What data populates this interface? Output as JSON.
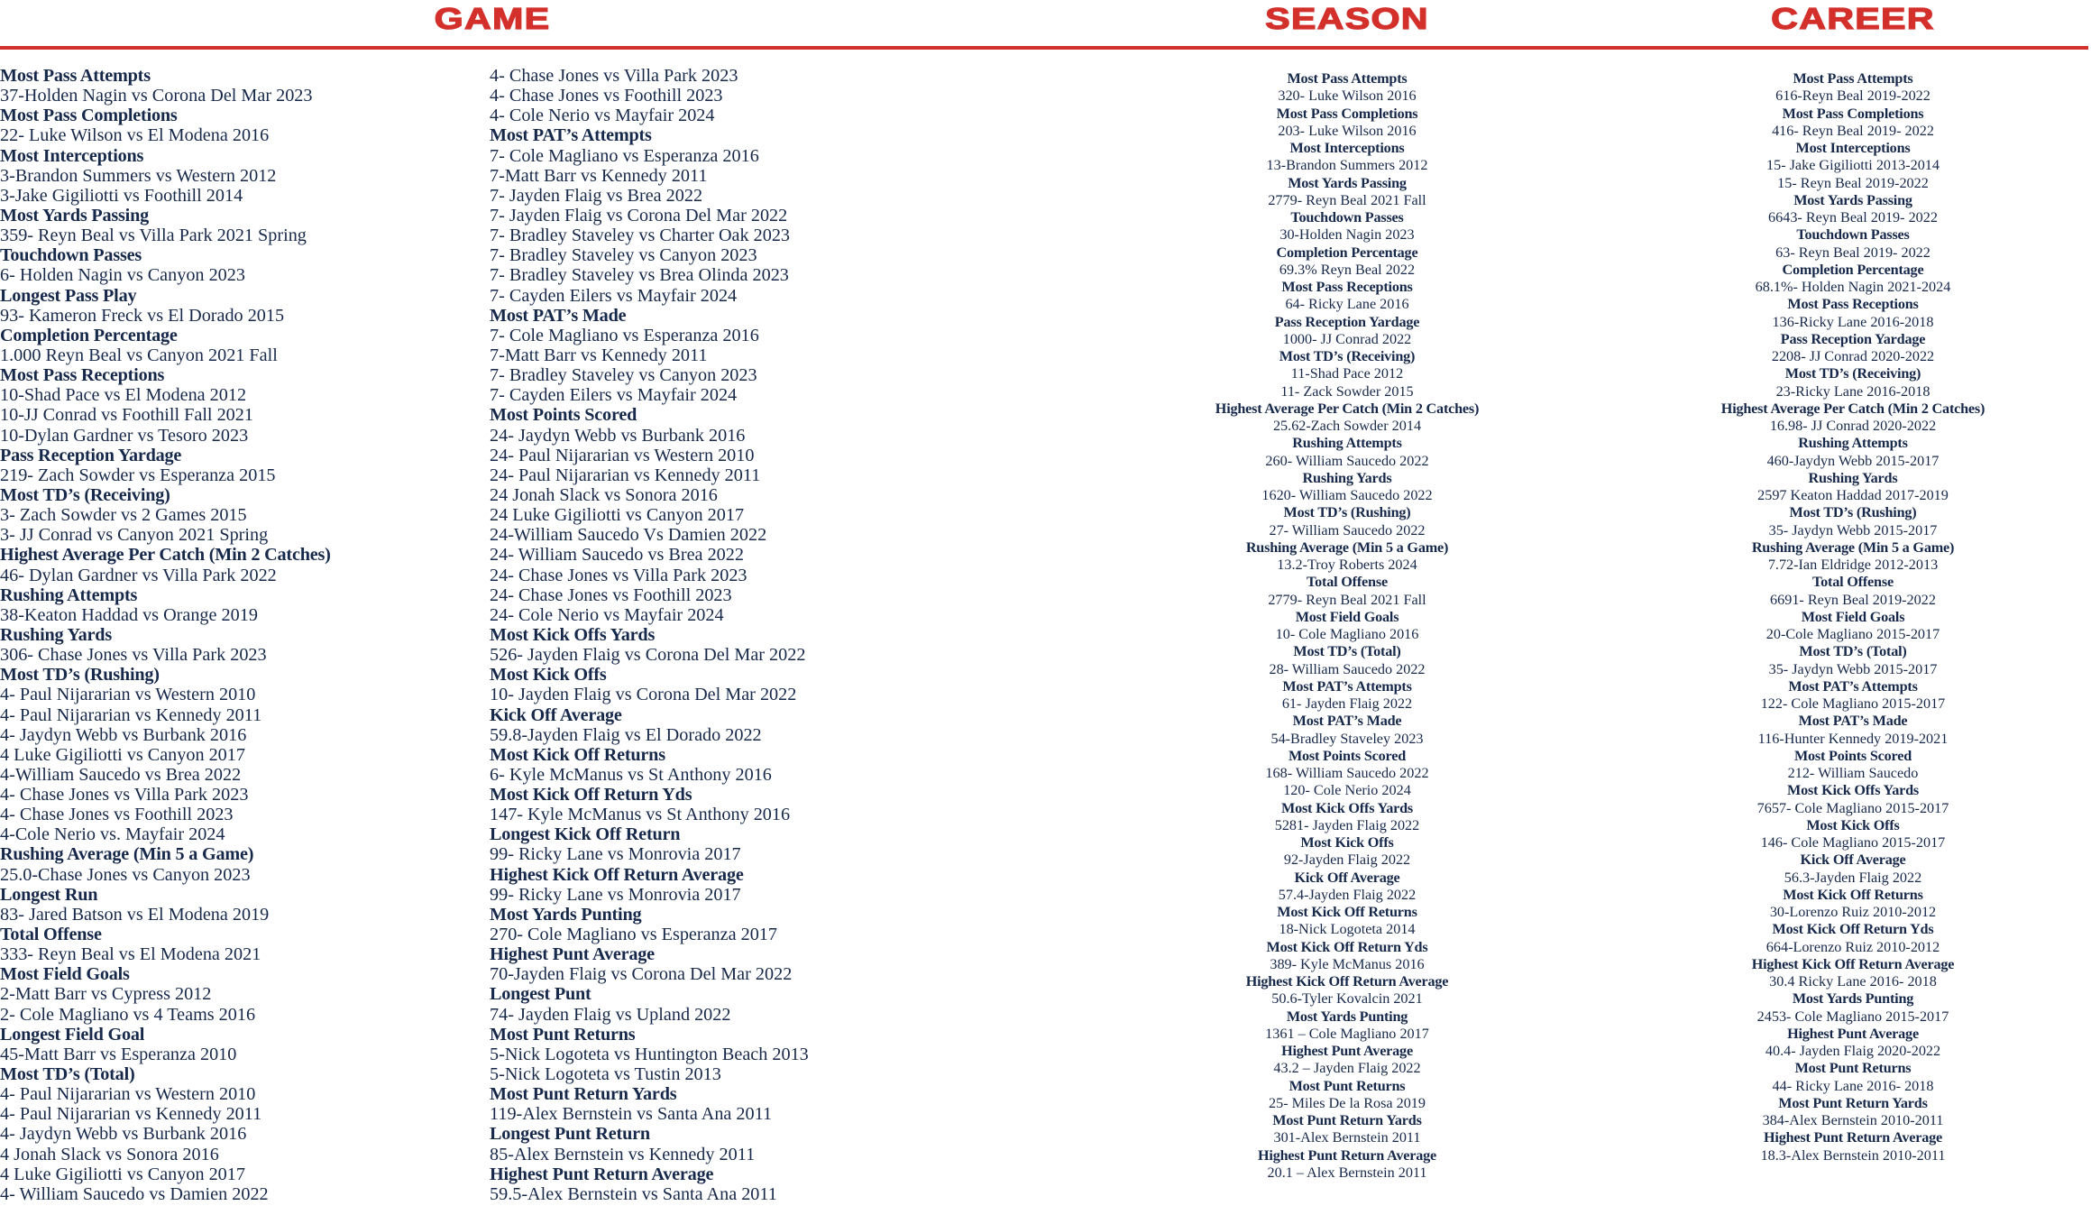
{
  "colors": {
    "accent": "#d3302c",
    "text": "#17294b"
  },
  "headers": {
    "game": "GAME",
    "season": "SEASON",
    "career": "CAREER"
  },
  "game": {
    "columns": [
      [
        {
          "title": "Most Pass Attempts",
          "entries": [
            "37-Holden Nagin vs Corona Del Mar 2023"
          ]
        },
        {
          "title": "Most Pass Completions",
          "entries": [
            "22- Luke Wilson vs El Modena 2016"
          ]
        },
        {
          "title": "Most Interceptions",
          "entries": [
            "3-Brandon Summers vs Western 2012",
            "3-Jake Gigiliotti vs Foothill 2014"
          ]
        },
        {
          "title": "Most Yards Passing",
          "entries": [
            "359- Reyn Beal vs  Villa Park 2021 Spring"
          ]
        },
        {
          "title": "Touchdown Passes",
          "entries": [
            "6- Holden Nagin vs Canyon 2023"
          ]
        },
        {
          "title": "Longest Pass Play",
          "entries": [
            "93- Kameron Freck vs El Dorado 2015"
          ]
        },
        {
          "title": "Completion Percentage",
          "entries": [
            "1.000 Reyn Beal vs Canyon 2021 Fall"
          ]
        },
        {
          "title": "Most Pass Receptions",
          "entries": [
            "10-Shad Pace vs El Modena 2012",
            "10-JJ Conrad vs Foothill Fall 2021",
            "10-Dylan Gardner vs Tesoro 2023"
          ]
        },
        {
          "title": "Pass Reception Yardage",
          "entries": [
            "219- Zach Sowder vs Esperanza 2015"
          ]
        },
        {
          "title": "Most TD’s (Receiving)",
          "entries": [
            "3- Zach Sowder vs 2 Games 2015",
            "3- JJ Conrad vs Canyon 2021 Spring"
          ]
        },
        {
          "title": "Highest Average Per Catch (Min 2 Catches)",
          "entries": [
            "46- Dylan Gardner vs Villa Park 2022"
          ]
        },
        {
          "title": "Rushing Attempts",
          "entries": [
            "38-Keaton Haddad vs Orange 2019"
          ]
        },
        {
          "title": "Rushing Yards",
          "entries": [
            "306- Chase Jones vs Villa Park 2023"
          ]
        },
        {
          "title": "Most TD’s (Rushing)",
          "entries": [
            "4- Paul Nijararian vs Western 2010",
            "4- Paul Nijararian vs Kennedy 2011",
            "4- Jaydyn Webb vs Burbank 2016",
            "4 Luke Gigiliotti vs Canyon 2017",
            "4-William Saucedo vs Brea 2022",
            "4- Chase Jones vs Villa Park 2023",
            "4- Chase Jones vs Foothill 2023",
            "4-Cole Nerio vs. Mayfair 2024"
          ]
        },
        {
          "title": "Rushing Average (Min 5 a Game)",
          "entries": [
            "25.0-Chase Jones vs Canyon 2023"
          ]
        },
        {
          "title": "Longest Run",
          "entries": [
            "83- Jared Batson vs El Modena 2019"
          ]
        },
        {
          "title": "Total Offense",
          "entries": [
            "333- Reyn Beal vs El Modena 2021"
          ]
        },
        {
          "title": "Most Field Goals",
          "entries": [
            "2-Matt Barr vs Cypress 2012",
            "2- Cole Magliano vs 4 Teams 2016"
          ]
        },
        {
          "title": "Longest Field Goal",
          "entries": [
            "45-Matt Barr vs Esperanza 2010"
          ]
        },
        {
          "title": "Most TD’s (Total)",
          "entries": [
            "4- Paul Nijararian vs Western 2010",
            "4- Paul Nijararian vs Kennedy 2011",
            "4- Jaydyn Webb vs Burbank 2016",
            "4 Jonah Slack vs Sonora 2016",
            "4 Luke Gigiliotti vs Canyon 2017",
            "4- William Saucedo vs Damien 2022"
          ]
        }
      ],
      [
        {
          "title": "",
          "entries": [
            "4- Chase Jones vs Villa Park 2023",
            "4- Chase Jones vs Foothill 2023",
            "4- Cole Nerio vs Mayfair 2024"
          ]
        },
        {
          "title": "Most PAT’s Attempts",
          "entries": [
            "7- Cole Magliano vs Esperanza 2016",
            "7-Matt Barr vs Kennedy 2011",
            "7- Jayden Flaig vs Brea 2022",
            "7- Jayden Flaig vs Corona Del Mar 2022",
            "7- Bradley Staveley vs Charter Oak 2023",
            "7- Bradley Staveley vs Canyon 2023",
            "7- Bradley Staveley vs Brea Olinda 2023",
            "7- Cayden Eilers vs Mayfair 2024"
          ]
        },
        {
          "title": "Most PAT’s Made",
          "entries": [
            "7- Cole Magliano vs Esperanza 2016",
            "7-Matt Barr vs Kennedy 2011",
            "7- Bradley Staveley vs Canyon 2023",
            "7- Cayden Eilers vs Mayfair 2024"
          ]
        },
        {
          "title": "Most Points Scored",
          "entries": [
            "24- Jaydyn Webb vs Burbank 2016",
            "24- Paul Nijararian vs Western 2010",
            "24- Paul Nijararian vs Kennedy 2011",
            "24 Jonah Slack vs Sonora 2016",
            "24 Luke Gigiliotti vs Canyon 2017",
            "24-William Saucedo Vs Damien 2022",
            "24- William Saucedo vs Brea 2022",
            "24- Chase Jones vs Villa Park 2023",
            "24- Chase Jones vs Foothill 2023",
            "24- Cole Nerio vs Mayfair 2024"
          ]
        },
        {
          "title": "Most Kick Offs Yards",
          "entries": [
            "526- Jayden Flaig vs Corona Del Mar 2022"
          ]
        },
        {
          "title": "Most Kick Offs",
          "entries": [
            "10- Jayden Flaig vs Corona Del Mar 2022"
          ]
        },
        {
          "title": "Kick Off Average",
          "entries": [
            "59.8-Jayden Flaig vs El Dorado 2022"
          ]
        },
        {
          "title": "Most Kick Off Returns",
          "entries": [
            "6- Kyle McManus vs St Anthony 2016"
          ]
        },
        {
          "title": "Most Kick Off Return Yds",
          "entries": [
            "147- Kyle McManus vs St Anthony 2016"
          ]
        },
        {
          "title": "Longest Kick Off Return",
          "entries": [
            "99- Ricky Lane vs Monrovia 2017"
          ]
        },
        {
          "title": "Highest Kick Off Return Average",
          "entries": [
            "99- Ricky Lane vs Monrovia 2017"
          ]
        },
        {
          "title": "Most Yards Punting",
          "entries": [
            "270- Cole Magliano vs Esperanza 2017"
          ]
        },
        {
          "title": "Highest Punt Average",
          "entries": [
            "70-Jayden Flaig vs Corona Del Mar 2022"
          ]
        },
        {
          "title": "Longest Punt",
          "entries": [
            "74- Jayden Flaig vs Upland 2022"
          ]
        },
        {
          "title": "Most Punt Returns",
          "entries": [
            "5-Nick Logoteta vs Huntington Beach 2013",
            "5-Nick Logoteta vs Tustin 2013"
          ]
        },
        {
          "title": "Most Punt Return Yards",
          "entries": [
            "119-Alex Bernstein vs Santa Ana 2011"
          ]
        },
        {
          "title": "Longest Punt Return",
          "entries": [
            "85-Alex Bernstein vs Kennedy 2011"
          ]
        },
        {
          "title": "Highest Punt Return Average",
          "entries": [
            "59.5-Alex Bernstein vs Santa Ana 2011"
          ]
        }
      ]
    ]
  },
  "season": [
    {
      "title": "Most Pass Attempts",
      "entries": [
        "320- Luke Wilson 2016"
      ]
    },
    {
      "title": "Most Pass Completions",
      "entries": [
        "203- Luke Wilson 2016"
      ]
    },
    {
      "title": "Most Interceptions",
      "entries": [
        "13-Brandon Summers 2012"
      ]
    },
    {
      "title": "Most Yards Passing",
      "entries": [
        "2779- Reyn Beal 2021 Fall"
      ]
    },
    {
      "title": "Touchdown Passes",
      "entries": [
        "30-Holden Nagin  2023"
      ]
    },
    {
      "title": "Completion Percentage",
      "entries": [
        "69.3% Reyn Beal 2022"
      ]
    },
    {
      "title": "Most Pass Receptions",
      "entries": [
        "64- Ricky Lane 2016"
      ]
    },
    {
      "title": "Pass Reception Yardage",
      "entries": [
        "1000- JJ Conrad 2022"
      ]
    },
    {
      "title": "Most TD’s (Receiving)",
      "entries": [
        "11-Shad Pace 2012",
        "11- Zack Sowder 2015"
      ]
    },
    {
      "title": "Highest Average Per Catch (Min 2 Catches)",
      "entries": [
        "25.62-Zach Sowder 2014"
      ]
    },
    {
      "title": "Rushing Attempts",
      "entries": [
        "260- William Saucedo 2022"
      ]
    },
    {
      "title": "Rushing Yards",
      "entries": [
        "1620- William Saucedo 2022"
      ]
    },
    {
      "title": "Most TD’s (Rushing)",
      "entries": [
        "27- William Saucedo 2022"
      ]
    },
    {
      "title": "Rushing Average (Min 5 a Game)",
      "entries": [
        "13.2-Troy Roberts 2024"
      ]
    },
    {
      "title": "Total Offense",
      "entries": [
        "2779- Reyn Beal 2021 Fall"
      ]
    },
    {
      "title": "Most Field Goals",
      "entries": [
        "10- Cole Magliano 2016"
      ]
    },
    {
      "title": "Most TD’s (Total)",
      "entries": [
        "28- William Saucedo 2022"
      ]
    },
    {
      "title": "Most PAT’s Attempts",
      "entries": [
        "61- Jayden Flaig 2022"
      ]
    },
    {
      "title": "Most PAT’s Made",
      "entries": [
        "54-Bradley Staveley 2023"
      ]
    },
    {
      "title": "Most Points Scored",
      "entries": [
        "168- William Saucedo 2022",
        "120- Cole Nerio 2024"
      ]
    },
    {
      "title": "Most Kick Offs Yards",
      "entries": [
        "5281- Jayden Flaig 2022"
      ]
    },
    {
      "title": "Most Kick Offs",
      "entries": [
        "92-Jayden Flaig 2022"
      ]
    },
    {
      "title": "Kick Off Average",
      "entries": [
        "57.4-Jayden Flaig 2022"
      ]
    },
    {
      "title": "Most Kick Off Returns",
      "entries": [
        "18-Nick Logoteta 2014"
      ]
    },
    {
      "title": "Most Kick Off Return Yds",
      "entries": [
        "389- Kyle McManus 2016"
      ]
    },
    {
      "title": "Highest Kick Off Return Average",
      "entries": [
        "50.6-Tyler Kovalcin 2021"
      ]
    },
    {
      "title": "Most Yards Punting",
      "entries": [
        "1361 – Cole Magliano 2017"
      ]
    },
    {
      "title": "Highest Punt Average",
      "entries": [
        "43.2 – Jayden Flaig 2022"
      ]
    },
    {
      "title": "Most Punt Returns",
      "entries": [
        "25- Miles De la Rosa 2019"
      ]
    },
    {
      "title": "Most Punt Return Yards",
      "entries": [
        "301-Alex Bernstein 2011"
      ]
    },
    {
      "title": "Highest Punt Return Average",
      "entries": [
        "20.1 – Alex Bernstein 2011"
      ]
    }
  ],
  "career": [
    {
      "title": "Most Pass Attempts",
      "entries": [
        "616-Reyn Beal  2019-2022"
      ]
    },
    {
      "title": "Most Pass Completions",
      "entries": [
        "416- Reyn Beal 2019- 2022"
      ]
    },
    {
      "title": "Most Interceptions",
      "entries": [
        "15- Jake Gigiliotti 2013-2014",
        "15- Reyn Beal 2019-2022"
      ]
    },
    {
      "title": "Most Yards Passing",
      "entries": [
        "6643- Reyn Beal 2019- 2022"
      ]
    },
    {
      "title": "Touchdown Passes",
      "entries": [
        "63-  Reyn Beal 2019- 2022"
      ]
    },
    {
      "title": "Completion Percentage",
      "entries": [
        "68.1%- Holden Nagin 2021-2024"
      ]
    },
    {
      "title": "Most Pass Receptions",
      "entries": [
        "136-Ricky Lane 2016-2018"
      ]
    },
    {
      "title": "Pass Reception Yardage",
      "entries": [
        "2208- JJ Conrad 2020-2022"
      ]
    },
    {
      "title": "Most TD’s (Receiving)",
      "entries": [
        "23-Ricky Lane 2016-2018"
      ]
    },
    {
      "title": "Highest Average Per Catch (Min 2 Catches)",
      "entries": [
        "16.98- JJ Conrad 2020-2022"
      ]
    },
    {
      "title": "Rushing Attempts",
      "entries": [
        "460-Jaydyn Webb 2015-2017"
      ]
    },
    {
      "title": "Rushing Yards",
      "entries": [
        "2597 Keaton Haddad 2017-2019"
      ]
    },
    {
      "title": "Most TD’s (Rushing)",
      "entries": [
        "35- Jaydyn Webb 2015-2017"
      ]
    },
    {
      "title": "Rushing Average (Min 5 a Game)",
      "entries": [
        "7.72-Ian Eldridge 2012-2013"
      ]
    },
    {
      "title": "Total Offense",
      "entries": [
        "6691- Reyn Beal 2019-2022"
      ]
    },
    {
      "title": "Most Field Goals",
      "entries": [
        "20-Cole Magliano 2015-2017"
      ]
    },
    {
      "title": "Most TD’s (Total)",
      "entries": [
        "35- Jaydyn Webb 2015-2017"
      ]
    },
    {
      "title": "Most PAT’s Attempts",
      "entries": [
        "122- Cole Magliano 2015-2017"
      ]
    },
    {
      "title": "Most PAT’s Made",
      "entries": [
        "116-Hunter Kennedy 2019-2021"
      ]
    },
    {
      "title": "Most Points Scored",
      "entries": [
        "212- William Saucedo"
      ]
    },
    {
      "title": "Most Kick Offs Yards",
      "entries": [
        "7657- Cole Magliano 2015-2017"
      ]
    },
    {
      "title": "Most Kick Offs",
      "entries": [
        "146- Cole Magliano 2015-2017"
      ]
    },
    {
      "title": "Kick Off Average",
      "entries": [
        "56.3-Jayden Flaig 2022"
      ]
    },
    {
      "title": "Most Kick Off Returns",
      "entries": [
        "30-Lorenzo Ruiz 2010-2012"
      ]
    },
    {
      "title": "Most Kick Off Return Yds",
      "entries": [
        "664-Lorenzo Ruiz 2010-2012"
      ]
    },
    {
      "title": "Highest Kick Off Return Average",
      "entries": [
        "30.4 Ricky Lane 2016- 2018"
      ]
    },
    {
      "title": "Most Yards Punting",
      "entries": [
        "2453- Cole Magliano 2015-2017"
      ]
    },
    {
      "title": "Highest Punt Average",
      "entries": [
        "40.4- Jayden Flaig 2020-2022"
      ]
    },
    {
      "title": "Most Punt Returns",
      "entries": [
        "44- Ricky Lane 2016- 2018"
      ]
    },
    {
      "title": "Most Punt Return Yards",
      "entries": [
        "384-Alex Bernstein 2010-2011"
      ]
    },
    {
      "title": "Highest Punt Return Average",
      "entries": [
        "18.3-Alex Bernstein 2010-2011"
      ]
    }
  ]
}
